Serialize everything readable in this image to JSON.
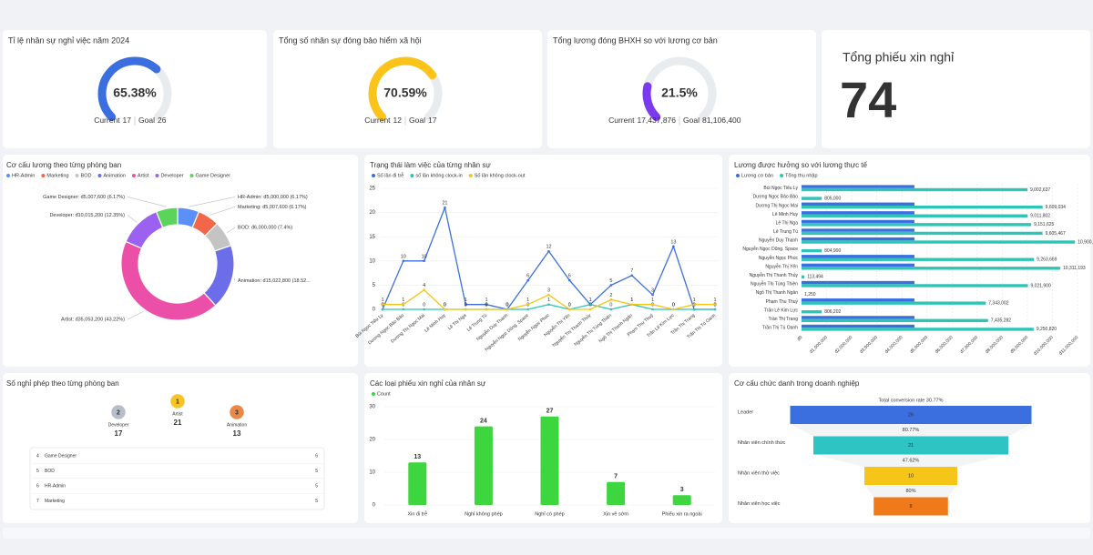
{
  "kpis": [
    {
      "title": "Tỉ lệ nhân sự nghỉ việc năm 2024",
      "value_label": "65.38%",
      "current_label": "Current",
      "current": 17,
      "goal_label": "Goal",
      "goal": 26,
      "color": "#3b6fe0"
    },
    {
      "title": "Tổng số nhân sự đóng bảo hiểm xã hội",
      "value_label": "70.59%",
      "current_label": "Current",
      "current": 12,
      "goal_label": "Goal",
      "goal": 17,
      "color": "#fcc419"
    },
    {
      "title": "Tổng lương đóng BHXH so với lương cơ bản",
      "value_label": "21.5%",
      "current_label": "Current",
      "current": {
        "value": 17437876,
        "label": "17,437,876"
      },
      "goal_label": "Goal",
      "goal": {
        "value": 81106400,
        "label": "81,106,400"
      },
      "color": "#7c3aed"
    }
  ],
  "big_kpi": {
    "title": "Tổng phiếu xin nghỉ",
    "value": 74,
    "color": "#f06060"
  },
  "chart_data": [
    {
      "type": "pie",
      "title": "Cơ cấu lương theo từng phòng ban",
      "categories": [
        "HR-Admin",
        "Marketing",
        "BOD",
        "Animation",
        "Artist",
        "Developer",
        "Game Designer"
      ],
      "values": [
        5000000,
        5007600,
        6000000,
        15022800,
        35053200,
        10015200,
        5007600
      ],
      "value_labels": [
        "HR-Admin: đ5,000,000 (6.17%)",
        "Marketing: đ5,007,600 (6.17%)",
        "BOD: đ6,000,000 (7.4%)",
        "Animation: đ15,022,800 (18.52...",
        "Artist: đ35,053,200 (43.22%)",
        "Developer: đ10,015,200 (12.35%)",
        "Game Designer: đ5,007,600 (6.17%)"
      ],
      "colors": [
        "#5b8ff9",
        "#f4664a",
        "#c4c4c4",
        "#6b6ee8",
        "#ec4fa8",
        "#9b61f0",
        "#5ad45a"
      ],
      "legend": "top"
    },
    {
      "type": "line",
      "title": "Trạng thái làm việc của từng nhân sự",
      "categories": [
        "Bùi Ngọc Tiểu Ly",
        "Dương Ngọc Bảo Bảo",
        "Dương Thị Ngọc Mai",
        "Lê Minh Huy",
        "Lê Thị Nga",
        "Lê Trung Tú",
        "Nguyễn Duy Thanh",
        "Nguyễn Ngọc Dũng. Space",
        "Nguyễn Ngọc Phúc",
        "Nguyễn Thị Yến",
        "Nguyễn Thị Thanh Thủy",
        "Nguyễn Thị Tùng Thiện",
        "Ngô Thị Thanh Ngân",
        "Phạm Thu Thuỷ",
        "Trần Lê Kim Lực",
        "Trần Thị Trang",
        "Trần Thị Tú Oanh"
      ],
      "series": [
        {
          "name": "Số lần đi trễ",
          "color": "#3b6fe0",
          "values": [
            0,
            10,
            10,
            21,
            1,
            1,
            0,
            6,
            12,
            6,
            1,
            5,
            7,
            3,
            13,
            0,
            0
          ]
        },
        {
          "name": "số lần không clock-in",
          "color": "#2ec4b6",
          "values": [
            0,
            0,
            0,
            0,
            0,
            0,
            0,
            0,
            1,
            0,
            1,
            0,
            1,
            0,
            0,
            0,
            0
          ]
        },
        {
          "name": "Số lần không clock-out",
          "color": "#f5c518",
          "values": [
            1,
            1,
            4,
            0,
            0,
            0,
            0,
            1,
            3,
            0,
            0,
            2,
            1,
            1,
            0,
            1,
            1
          ]
        }
      ],
      "ylim": [
        0,
        25
      ],
      "yticks": [
        0,
        5,
        10,
        15,
        20,
        25
      ],
      "grid": true,
      "legend": "top"
    },
    {
      "type": "hbar",
      "title": "Lương được hưởng so với lương thực tế",
      "categories": [
        "Bùi Ngọc Tiểu Ly",
        "Dương Ngọc Bảo Bảo",
        "Dương Thị Ngọc Mai",
        "Lê Minh Huy",
        "Lê Thị Nga",
        "Lê Trung Tú",
        "Nguyễn Duy Thanh",
        "Nguyễn Ngọc Dũng. Space",
        "Nguyễn Ngọc Phúc",
        "Nguyễn Thị Yến",
        "Nguyễn Thị Thanh Thủy",
        "Nguyễn Thị Tùng Thiện",
        "Ngô Thị Thanh Ngân",
        "Phạm Thu Thuỷ",
        "Trần Lê Kim Lực",
        "Trần Thị Trang",
        "Trần Thị Tú Oanh"
      ],
      "series": [
        {
          "name": "Lương cơ bản",
          "color": "#3b6fe0",
          "values": [
            4500000,
            0,
            4500000,
            4500000,
            4500000,
            4500000,
            4500000,
            0,
            4500000,
            4500000,
            0,
            4500000,
            0,
            4500000,
            0,
            4500000,
            4500000
          ]
        },
        {
          "name": "Tổng thu nhập",
          "color": "#2ec4b6",
          "values": [
            9002637,
            805000,
            9609034,
            9011802,
            9151625,
            9605467,
            10900000,
            804900,
            9263669,
            10311193,
            113494,
            9021900,
            1250,
            7343002,
            806202,
            7435282,
            9250820
          ],
          "value_labels": [
            "9,002,637",
            "805,000",
            "9,609,034",
            "9,011,802",
            "9,151,625",
            "9,605,467",
            "10,900,000",
            "804,900",
            "9,263,669",
            "10,311,193",
            "113,494",
            "9,021,900",
            "1,250",
            "7,343,002",
            "806,202",
            "7,435,282",
            "9,250,820"
          ]
        }
      ],
      "xlim": [
        0,
        11000000
      ],
      "xticks": [
        {
          "value": 0,
          "label": "đ0"
        },
        {
          "value": 1000000,
          "label": "đ1,000,000"
        },
        {
          "value": 2000000,
          "label": "đ2,000,000"
        },
        {
          "value": 3000000,
          "label": "đ3,000,000"
        },
        {
          "value": 4000000,
          "label": "đ4,000,000"
        },
        {
          "value": 5000000,
          "label": "đ5,000,000"
        },
        {
          "value": 6000000,
          "label": "đ6,000,000"
        },
        {
          "value": 7000000,
          "label": "đ7,000,000"
        },
        {
          "value": 8000000,
          "label": "đ8,000,000"
        },
        {
          "value": 9000000,
          "label": "đ9,000,000"
        },
        {
          "value": 10000000,
          "label": "đ10,000,000"
        },
        {
          "value": 11000000,
          "label": "đ11,000,000"
        }
      ],
      "grid": true,
      "legend": "top"
    },
    {
      "type": "bar",
      "title": "Các loại phiếu xin nghỉ của nhân sự",
      "categories": [
        "Xin đi trễ",
        "Nghỉ không phép",
        "Nghỉ có phép",
        "Xin về sớm",
        "Phiếu xin ra ngoài"
      ],
      "series": [
        {
          "name": "Count",
          "color": "#3ed63e",
          "values": [
            13,
            24,
            27,
            7,
            3
          ]
        }
      ],
      "ylim": [
        0,
        30
      ],
      "yticks": [
        0,
        10,
        20,
        30
      ],
      "grid": true,
      "label_color": "#e53935",
      "legend": "top"
    },
    {
      "type": "funnel",
      "title": "Cơ cấu chức danh trong doanh nghiệp",
      "subtitle": "Total conversion rate 30.77%",
      "categories": [
        "Leader",
        "Nhân viên chính thức",
        "Nhân viên thử việc",
        "Nhân viên học việc"
      ],
      "values": [
        26,
        21,
        10,
        8
      ],
      "colors": [
        "#3b6fe0",
        "#2ec4c4",
        "#f5c518",
        "#f07a1a"
      ],
      "conversion_labels": [
        "80.77%",
        "47.62%",
        "80%"
      ]
    }
  ],
  "leave_ranking": {
    "title": "Số nghỉ phép theo từng phòng ban",
    "podium": [
      {
        "rank": 2,
        "name": "Developer",
        "count": 17
      },
      {
        "rank": 1,
        "name": "Artist",
        "count": 21
      },
      {
        "rank": 3,
        "name": "Animation",
        "count": 13
      }
    ],
    "table": [
      [
        4,
        "Game Designer",
        6
      ],
      [
        5,
        "BOD",
        5
      ],
      [
        6,
        "HR-Admin",
        5
      ],
      [
        7,
        "Marketing",
        5
      ]
    ]
  }
}
